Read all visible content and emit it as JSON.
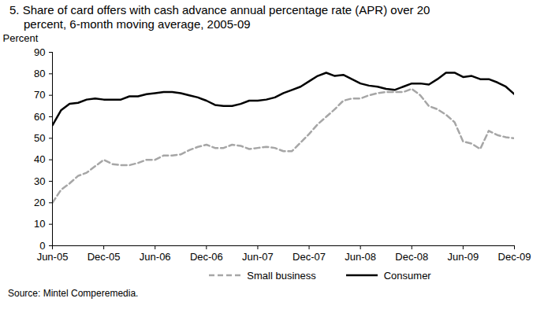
{
  "chart_data": {
    "type": "line",
    "title": "5. Share of card offers with cash advance annual percentage rate (APR) over 20 percent, 6-month moving average, 2005-09",
    "y_label": "Percent",
    "source": "Source: Mintel Comperemedia.",
    "categories": [
      "Jun-05",
      null,
      null,
      null,
      null,
      null,
      "Dec-05",
      null,
      null,
      null,
      null,
      null,
      "Jun-06",
      null,
      null,
      null,
      null,
      null,
      "Dec-06",
      null,
      null,
      null,
      null,
      null,
      "Jun-07",
      null,
      null,
      null,
      null,
      null,
      "Dec-07",
      null,
      null,
      null,
      null,
      null,
      "Jun-08",
      null,
      null,
      null,
      null,
      null,
      "Dec-08",
      null,
      null,
      null,
      null,
      null,
      "Jun-09",
      null,
      null,
      null,
      null,
      null,
      "Dec-09"
    ],
    "series": [
      {
        "name": "Small business",
        "color": "#a6a6a6",
        "line_style": "dashed",
        "values": [
          20,
          26,
          29,
          32.5,
          34,
          37,
          40,
          38,
          37.5,
          37.5,
          38.5,
          40,
          40,
          42,
          42,
          42.5,
          44.5,
          46,
          47,
          45.5,
          45.5,
          47,
          46.5,
          45,
          45.5,
          46,
          45.5,
          44,
          44,
          48,
          52,
          56.5,
          60,
          63.5,
          67.5,
          68.5,
          68.5,
          70,
          71,
          71.5,
          71.5,
          71.5,
          73,
          70,
          65,
          63.5,
          61,
          57.5,
          48.5,
          47.5,
          45,
          53.5,
          51.5,
          50.5,
          50
        ]
      },
      {
        "name": "Consumer",
        "color": "#000000",
        "line_style": "solid",
        "values": [
          56,
          63,
          66,
          66.5,
          68,
          68.5,
          68,
          68,
          68,
          69.5,
          69.5,
          70.5,
          71,
          71.5,
          71.5,
          71,
          70,
          69,
          67.5,
          65.5,
          65,
          65,
          66,
          67.5,
          67.5,
          68,
          69,
          71,
          72.5,
          74,
          76.5,
          79,
          80.5,
          79,
          79.5,
          77.5,
          75.5,
          74.5,
          74,
          73,
          72.5,
          74,
          75.5,
          75.5,
          75,
          77.5,
          80.5,
          80.5,
          78.5,
          79,
          77.5,
          77.5,
          76,
          74,
          70.5
        ]
      }
    ],
    "ylim": [
      0,
      90
    ],
    "yticks": [
      0,
      10,
      20,
      30,
      40,
      50,
      60,
      70,
      80,
      90
    ],
    "grid": false,
    "legend": "bottom"
  }
}
